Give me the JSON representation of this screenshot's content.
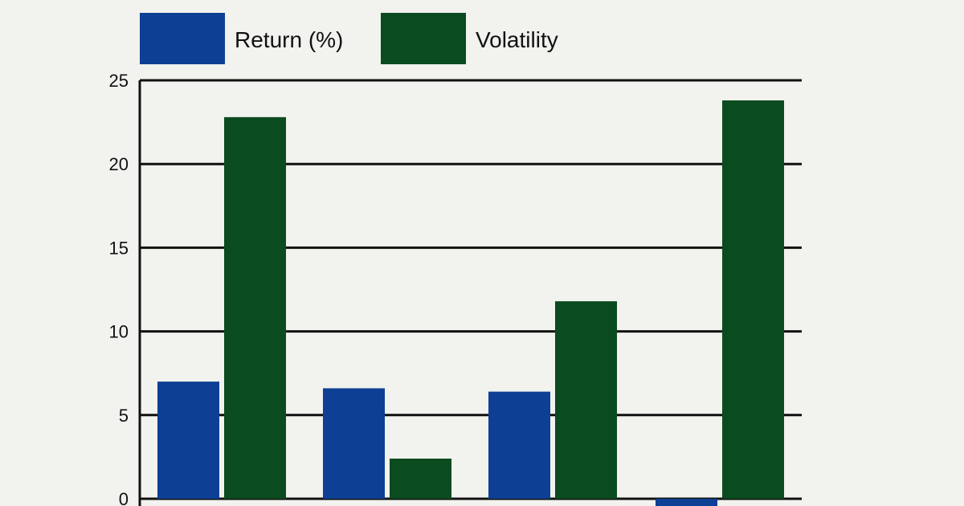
{
  "chart_data": {
    "type": "bar",
    "categories": [
      "",
      "",
      "",
      ""
    ],
    "series": [
      {
        "name": "Return (%)",
        "color": "#0d3f94",
        "values": [
          7.0,
          6.6,
          6.4,
          -0.6
        ]
      },
      {
        "name": "Volatility",
        "color": "#0a4b1f",
        "values": [
          22.8,
          2.4,
          11.8,
          23.8
        ]
      }
    ],
    "title": "",
    "xlabel": "",
    "ylabel": "",
    "ylim": [
      0,
      25
    ],
    "yticks": [
      "0",
      "5",
      "10",
      "15",
      "20",
      "25"
    ],
    "grid": true,
    "legend_position": "top-left"
  }
}
